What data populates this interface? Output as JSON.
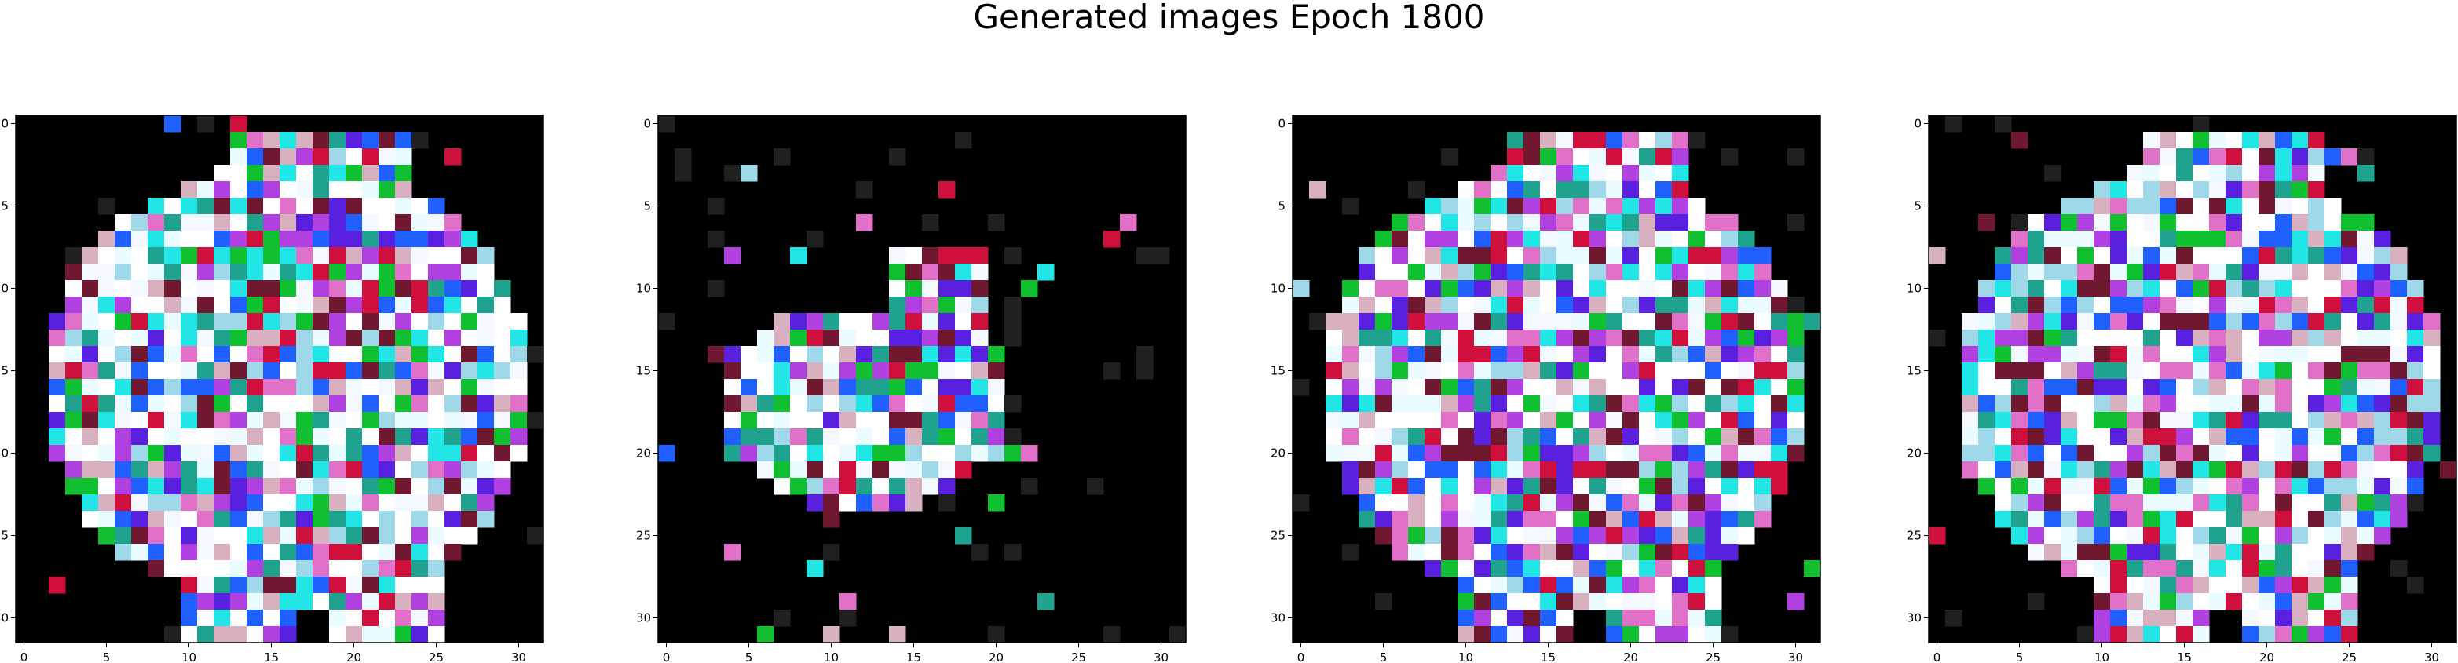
{
  "figure": {
    "title": "Generated images Epoch 1800"
  },
  "chart_data": [
    {
      "type": "heatmap",
      "grid": [
        32,
        32
      ],
      "xlim": [
        -0.5,
        31.5
      ],
      "ylim": [
        31.5,
        -0.5
      ],
      "xticks": [
        0,
        5,
        10,
        15,
        20,
        25,
        30
      ],
      "yticks": [
        0,
        5,
        10,
        15,
        20,
        25,
        30
      ],
      "variant": "full"
    },
    {
      "type": "heatmap",
      "grid": [
        32,
        32
      ],
      "xlim": [
        -0.5,
        31.5
      ],
      "ylim": [
        31.5,
        -0.5
      ],
      "xticks": [
        0,
        5,
        10,
        15,
        20,
        25,
        30
      ],
      "yticks": [
        0,
        5,
        10,
        15,
        20,
        25,
        30
      ],
      "variant": "sparse"
    },
    {
      "type": "heatmap",
      "grid": [
        32,
        32
      ],
      "xlim": [
        -0.5,
        31.5
      ],
      "ylim": [
        31.5,
        -0.5
      ],
      "xticks": [
        0,
        5,
        10,
        15,
        20,
        25,
        30
      ],
      "yticks": [
        0,
        5,
        10,
        15,
        20,
        25,
        30
      ],
      "variant": "full"
    },
    {
      "type": "heatmap",
      "grid": [
        32,
        32
      ],
      "xlim": [
        -0.5,
        31.5
      ],
      "ylim": [
        31.5,
        -0.5
      ],
      "xticks": [
        0,
        5,
        10,
        15,
        20,
        25,
        30
      ],
      "yticks": [
        0,
        5,
        10,
        15,
        20,
        25,
        30
      ],
      "variant": "full"
    }
  ],
  "colors": {
    "background": "#000000",
    "white": "#ffffff",
    "cyan": "#22e6e6",
    "teal": "#1fa38f",
    "pink": "#e070c8",
    "magenta": "#b040e0",
    "red": "#d0103c",
    "blue": "#2060ff",
    "purple": "#5a20e0",
    "green": "#10c030",
    "maroon": "#701830"
  }
}
